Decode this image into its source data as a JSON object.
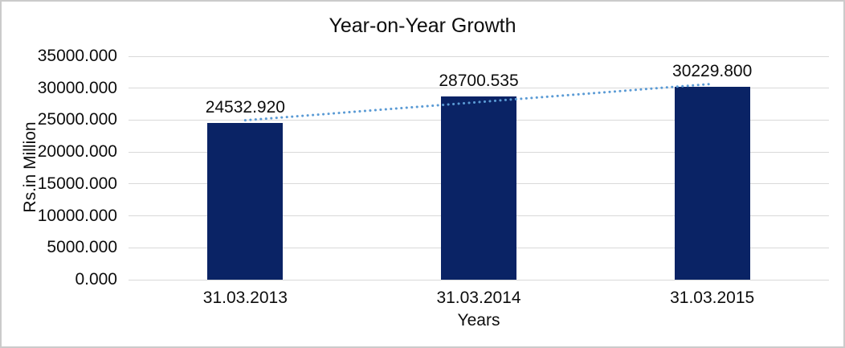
{
  "chart_data": {
    "type": "bar",
    "title": "Year-on-Year Growth",
    "xlabel": "Years",
    "ylabel": "Rs.in Million",
    "categories": [
      "31.03.2013",
      "31.03.2014",
      "31.03.2015"
    ],
    "values": [
      24532.92,
      28700.535,
      30229.8
    ],
    "value_labels": [
      "24532.920",
      "28700.535",
      "30229.800"
    ],
    "ylim": [
      0,
      35000
    ],
    "ytick_step": 5000,
    "ytick_labels": [
      "0.000",
      "5000.000",
      "10000.000",
      "15000.000",
      "20000.000",
      "25000.000",
      "30000.000",
      "35000.000"
    ],
    "grid": true,
    "legend": "none",
    "trendline": {
      "type": "linear",
      "style": "dotted",
      "color": "#5b9bd5"
    },
    "colors": {
      "bar": "#0a2365",
      "gridline": "#d9d9d9",
      "text": "#0d0d0d",
      "background": "#ffffff",
      "border": "#cbcbcb"
    }
  }
}
